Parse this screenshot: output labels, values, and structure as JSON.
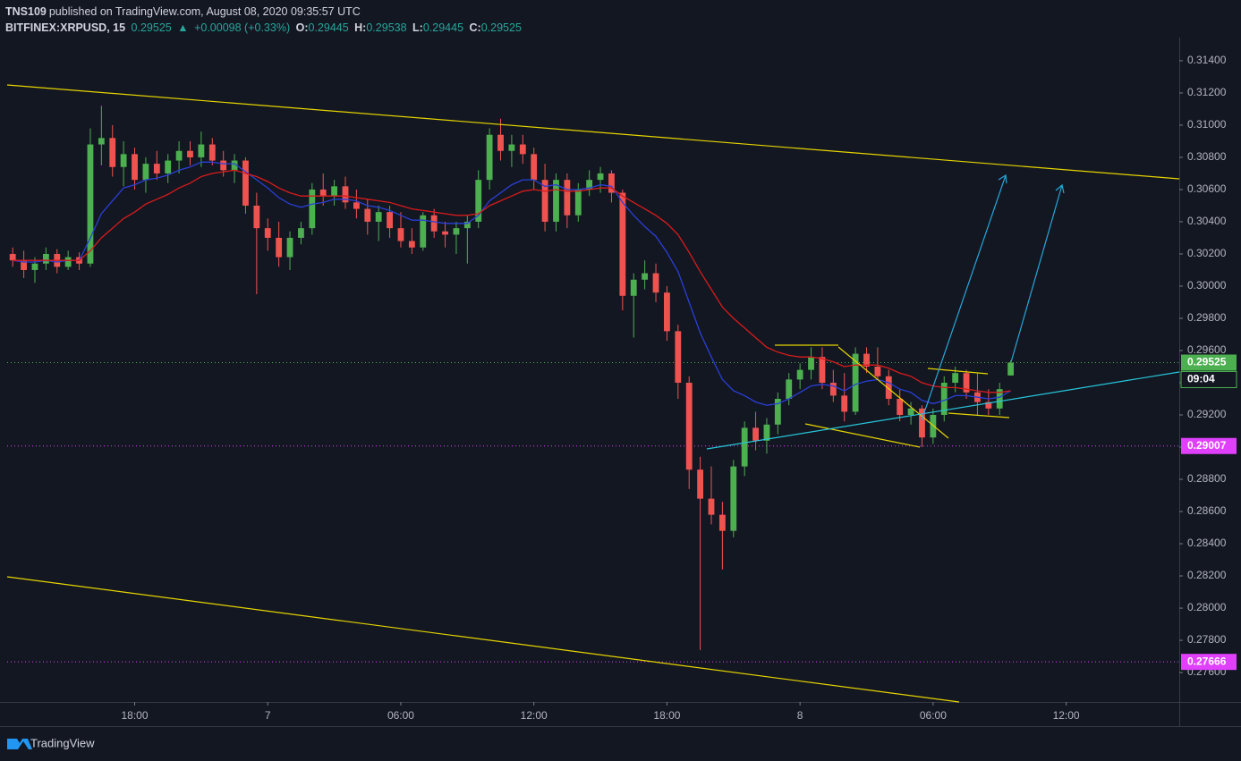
{
  "header": {
    "publisher": "TNS109",
    "published": "published on TradingView.com, August 08, 2020 09:35:57 UTC",
    "symbol": "BITFINEX:XRPUSD, 15",
    "last": "0.29525",
    "arrow": "▲",
    "change": "+0.00098 (+0.33%)",
    "o_label": "O:",
    "o": "0.29445",
    "h_label": "H:",
    "h": "0.29538",
    "l_label": "L:",
    "l": "0.29445",
    "c_label": "C:",
    "c": "0.29525"
  },
  "logo": "TradingView",
  "chart_data": {
    "type": "candlestick",
    "up_color": "#4caf50",
    "down_color": "#ef5350",
    "xlim": [
      -0.5,
      105.2
    ],
    "ylim": [
      0.27417,
      0.31544
    ],
    "xticks": [
      {
        "value": 11,
        "label": "18:00"
      },
      {
        "value": 23,
        "label": "7"
      },
      {
        "value": 35,
        "label": "06:00"
      },
      {
        "value": 47,
        "label": "12:00"
      },
      {
        "value": 59,
        "label": "18:00"
      },
      {
        "value": 71,
        "label": "8"
      },
      {
        "value": 83,
        "label": "06:00"
      },
      {
        "value": 95,
        "label": "12:00"
      }
    ],
    "yticks": [
      {
        "value": 0.276,
        "label": "0.27600"
      },
      {
        "value": 0.278,
        "label": "0.27800"
      },
      {
        "value": 0.28,
        "label": "0.28000"
      },
      {
        "value": 0.282,
        "label": "0.28200"
      },
      {
        "value": 0.284,
        "label": "0.28400"
      },
      {
        "value": 0.286,
        "label": "0.28600"
      },
      {
        "value": 0.288,
        "label": "0.28800"
      },
      {
        "value": 0.29,
        "label": "0.29000"
      },
      {
        "value": 0.292,
        "label": "0.29200"
      },
      {
        "value": 0.294,
        "label": "0.29400"
      },
      {
        "value": 0.296,
        "label": "0.29600"
      },
      {
        "value": 0.298,
        "label": "0.29800"
      },
      {
        "value": 0.3,
        "label": "0.30000"
      },
      {
        "value": 0.302,
        "label": "0.30200"
      },
      {
        "value": 0.304,
        "label": "0.30400"
      },
      {
        "value": 0.306,
        "label": "0.30600"
      },
      {
        "value": 0.308,
        "label": "0.30800"
      },
      {
        "value": 0.31,
        "label": "0.31000"
      },
      {
        "value": 0.312,
        "label": "0.31200"
      },
      {
        "value": 0.314,
        "label": "0.31400"
      }
    ],
    "price_lines": [
      {
        "value": 0.29525,
        "color": "#4caf50"
      },
      {
        "value": 0.29007,
        "color": "#e040fb"
      },
      {
        "value": 0.27666,
        "color": "#e040fb"
      }
    ],
    "countdown": "09:04",
    "ohlc": [
      [
        0.302,
        0.3024,
        0.3012,
        0.3016
      ],
      [
        0.3016,
        0.3022,
        0.3005,
        0.301
      ],
      [
        0.301,
        0.3018,
        0.3002,
        0.3014
      ],
      [
        0.3014,
        0.3024,
        0.301,
        0.302
      ],
      [
        0.302,
        0.3023,
        0.3008,
        0.3012
      ],
      [
        0.3012,
        0.3022,
        0.301,
        0.3018
      ],
      [
        0.3018,
        0.3021,
        0.301,
        0.3014
      ],
      [
        0.3014,
        0.3098,
        0.3012,
        0.3088
      ],
      [
        0.3088,
        0.3112,
        0.3075,
        0.3092
      ],
      [
        0.3092,
        0.31,
        0.3068,
        0.3074
      ],
      [
        0.3074,
        0.309,
        0.3062,
        0.3082
      ],
      [
        0.3082,
        0.3086,
        0.306,
        0.3066
      ],
      [
        0.3066,
        0.308,
        0.3058,
        0.3076
      ],
      [
        0.3076,
        0.3084,
        0.3066,
        0.307
      ],
      [
        0.307,
        0.3082,
        0.3064,
        0.3078
      ],
      [
        0.3078,
        0.309,
        0.307,
        0.3084
      ],
      [
        0.3084,
        0.309,
        0.3075,
        0.308
      ],
      [
        0.308,
        0.3096,
        0.3074,
        0.3088
      ],
      [
        0.3088,
        0.3092,
        0.3075,
        0.3078
      ],
      [
        0.3078,
        0.3084,
        0.3068,
        0.3072
      ],
      [
        0.3072,
        0.3082,
        0.3064,
        0.3078
      ],
      [
        0.3078,
        0.308,
        0.3045,
        0.305
      ],
      [
        0.305,
        0.3058,
        0.2995,
        0.3036
      ],
      [
        0.3036,
        0.3042,
        0.3022,
        0.303
      ],
      [
        0.303,
        0.304,
        0.3012,
        0.3018
      ],
      [
        0.3018,
        0.3034,
        0.301,
        0.303
      ],
      [
        0.303,
        0.304,
        0.3026,
        0.3036
      ],
      [
        0.3036,
        0.3064,
        0.3032,
        0.306
      ],
      [
        0.306,
        0.307,
        0.305,
        0.3056
      ],
      [
        0.3056,
        0.3066,
        0.305,
        0.3062
      ],
      [
        0.3062,
        0.3068,
        0.3048,
        0.3052
      ],
      [
        0.3052,
        0.306,
        0.3042,
        0.3048
      ],
      [
        0.3048,
        0.3054,
        0.3032,
        0.304
      ],
      [
        0.304,
        0.305,
        0.3028,
        0.3046
      ],
      [
        0.3046,
        0.305,
        0.303,
        0.3036
      ],
      [
        0.3036,
        0.3046,
        0.3024,
        0.3028
      ],
      [
        0.3028,
        0.3036,
        0.302,
        0.3024
      ],
      [
        0.3024,
        0.3046,
        0.3022,
        0.3044
      ],
      [
        0.3044,
        0.3048,
        0.303,
        0.3034
      ],
      [
        0.3034,
        0.304,
        0.3024,
        0.3032
      ],
      [
        0.3032,
        0.304,
        0.302,
        0.3036
      ],
      [
        0.3036,
        0.3044,
        0.3014,
        0.304
      ],
      [
        0.304,
        0.3072,
        0.3036,
        0.3066
      ],
      [
        0.3066,
        0.3098,
        0.306,
        0.3094
      ],
      [
        0.3094,
        0.3104,
        0.3078,
        0.3084
      ],
      [
        0.3084,
        0.3094,
        0.3074,
        0.3088
      ],
      [
        0.3088,
        0.3094,
        0.3076,
        0.3082
      ],
      [
        0.3082,
        0.3086,
        0.306,
        0.3066
      ],
      [
        0.3066,
        0.3076,
        0.3034,
        0.304
      ],
      [
        0.304,
        0.307,
        0.3034,
        0.3066
      ],
      [
        0.3066,
        0.307,
        0.3036,
        0.3044
      ],
      [
        0.3044,
        0.3064,
        0.304,
        0.306
      ],
      [
        0.306,
        0.3072,
        0.3056,
        0.3066
      ],
      [
        0.3066,
        0.3074,
        0.3058,
        0.307
      ],
      [
        0.307,
        0.3072,
        0.3052,
        0.3058
      ],
      [
        0.3058,
        0.306,
        0.2985,
        0.2994
      ],
      [
        0.2994,
        0.3008,
        0.2968,
        0.3004
      ],
      [
        0.3004,
        0.3016,
        0.2998,
        0.3008
      ],
      [
        0.3008,
        0.3014,
        0.299,
        0.2996
      ],
      [
        0.2996,
        0.3,
        0.2966,
        0.2972
      ],
      [
        0.2972,
        0.2976,
        0.293,
        0.294
      ],
      [
        0.294,
        0.2944,
        0.2874,
        0.2886
      ],
      [
        0.2886,
        0.2894,
        0.2774,
        0.2868
      ],
      [
        0.2868,
        0.2888,
        0.2852,
        0.2858
      ],
      [
        0.2858,
        0.2866,
        0.2824,
        0.2848
      ],
      [
        0.2848,
        0.2892,
        0.2844,
        0.2888
      ],
      [
        0.2888,
        0.2916,
        0.2882,
        0.2912
      ],
      [
        0.2912,
        0.2922,
        0.2898,
        0.2904
      ],
      [
        0.2904,
        0.2918,
        0.2896,
        0.2914
      ],
      [
        0.2914,
        0.2934,
        0.2908,
        0.293
      ],
      [
        0.293,
        0.2946,
        0.2926,
        0.2942
      ],
      [
        0.2942,
        0.2952,
        0.2936,
        0.2948
      ],
      [
        0.2948,
        0.2962,
        0.2942,
        0.2956
      ],
      [
        0.2956,
        0.2962,
        0.2936,
        0.294
      ],
      [
        0.294,
        0.2948,
        0.2928,
        0.2932
      ],
      [
        0.2932,
        0.2946,
        0.2916,
        0.2922
      ],
      [
        0.2922,
        0.2962,
        0.292,
        0.2958
      ],
      [
        0.2958,
        0.2962,
        0.2946,
        0.295
      ],
      [
        0.295,
        0.2962,
        0.2942,
        0.2944
      ],
      [
        0.2944,
        0.2948,
        0.2926,
        0.293
      ],
      [
        0.293,
        0.2936,
        0.2916,
        0.292
      ],
      [
        0.292,
        0.2928,
        0.2914,
        0.2924
      ],
      [
        0.2924,
        0.2926,
        0.29,
        0.2906
      ],
      [
        0.2906,
        0.2924,
        0.2902,
        0.292
      ],
      [
        0.292,
        0.2944,
        0.2916,
        0.294
      ],
      [
        0.294,
        0.295,
        0.2934,
        0.2946
      ],
      [
        0.2946,
        0.2948,
        0.293,
        0.2934
      ],
      [
        0.2934,
        0.2946,
        0.292,
        0.2928
      ],
      [
        0.2928,
        0.2936,
        0.292,
        0.2924
      ],
      [
        0.2924,
        0.294,
        0.292,
        0.2936
      ],
      [
        0.29445,
        0.29538,
        0.29445,
        0.29525
      ]
    ],
    "overlays": [
      {
        "color": "#2a3fd8",
        "values": [
          0.3016,
          0.3015,
          0.3015,
          0.3016,
          0.3015,
          0.3016,
          0.3016,
          0.303,
          0.3045,
          0.3053,
          0.3061,
          0.3063,
          0.3066,
          0.3067,
          0.3069,
          0.3072,
          0.3074,
          0.3077,
          0.3077,
          0.3076,
          0.3076,
          0.3071,
          0.3066,
          0.3061,
          0.3055,
          0.3051,
          0.3049,
          0.3051,
          0.3052,
          0.3054,
          0.3054,
          0.3053,
          0.305,
          0.3049,
          0.3047,
          0.3044,
          0.3041,
          0.3041,
          0.304,
          0.3039,
          0.3039,
          0.3039,
          0.3044,
          0.3053,
          0.3058,
          0.3063,
          0.3066,
          0.3066,
          0.3062,
          0.3063,
          0.306,
          0.306,
          0.3061,
          0.3063,
          0.3062,
          0.3052,
          0.3044,
          0.3037,
          0.3031,
          0.3021,
          0.3009,
          0.299,
          0.2971,
          0.2956,
          0.2942,
          0.2935,
          0.2932,
          0.2928,
          0.2926,
          0.2927,
          0.293,
          0.2934,
          0.2938,
          0.2939,
          0.2938,
          0.2935,
          0.2939,
          0.2941,
          0.2942,
          0.294,
          0.2936,
          0.2934,
          0.2929,
          0.2927,
          0.2929,
          0.2932,
          0.2932,
          0.2931,
          0.293,
          0.2931,
          0.2935
        ]
      },
      {
        "color": "#d81b1b",
        "values": [
          0.3016,
          0.3016,
          0.3016,
          0.3016,
          0.3016,
          0.3016,
          0.3016,
          0.3022,
          0.303,
          0.3036,
          0.3042,
          0.3046,
          0.3051,
          0.3054,
          0.3057,
          0.3061,
          0.3064,
          0.3068,
          0.307,
          0.3071,
          0.3072,
          0.307,
          0.3068,
          0.3065,
          0.3061,
          0.3058,
          0.3056,
          0.3056,
          0.3056,
          0.3056,
          0.3056,
          0.3055,
          0.3054,
          0.3053,
          0.3052,
          0.305,
          0.3048,
          0.3047,
          0.3046,
          0.3045,
          0.3044,
          0.3044,
          0.3045,
          0.305,
          0.3053,
          0.3056,
          0.3059,
          0.306,
          0.3059,
          0.306,
          0.3059,
          0.3059,
          0.306,
          0.3061,
          0.3061,
          0.3056,
          0.3052,
          0.3048,
          0.3044,
          0.3039,
          0.3032,
          0.3021,
          0.3009,
          0.2998,
          0.2987,
          0.298,
          0.2974,
          0.2968,
          0.2962,
          0.2959,
          0.2957,
          0.2956,
          0.2956,
          0.2955,
          0.2953,
          0.295,
          0.2951,
          0.2951,
          0.2951,
          0.2949,
          0.2946,
          0.2944,
          0.294,
          0.2938,
          0.2937,
          0.2937,
          0.2936,
          0.2935,
          0.2934,
          0.2934,
          0.2935
        ]
      }
    ]
  }
}
